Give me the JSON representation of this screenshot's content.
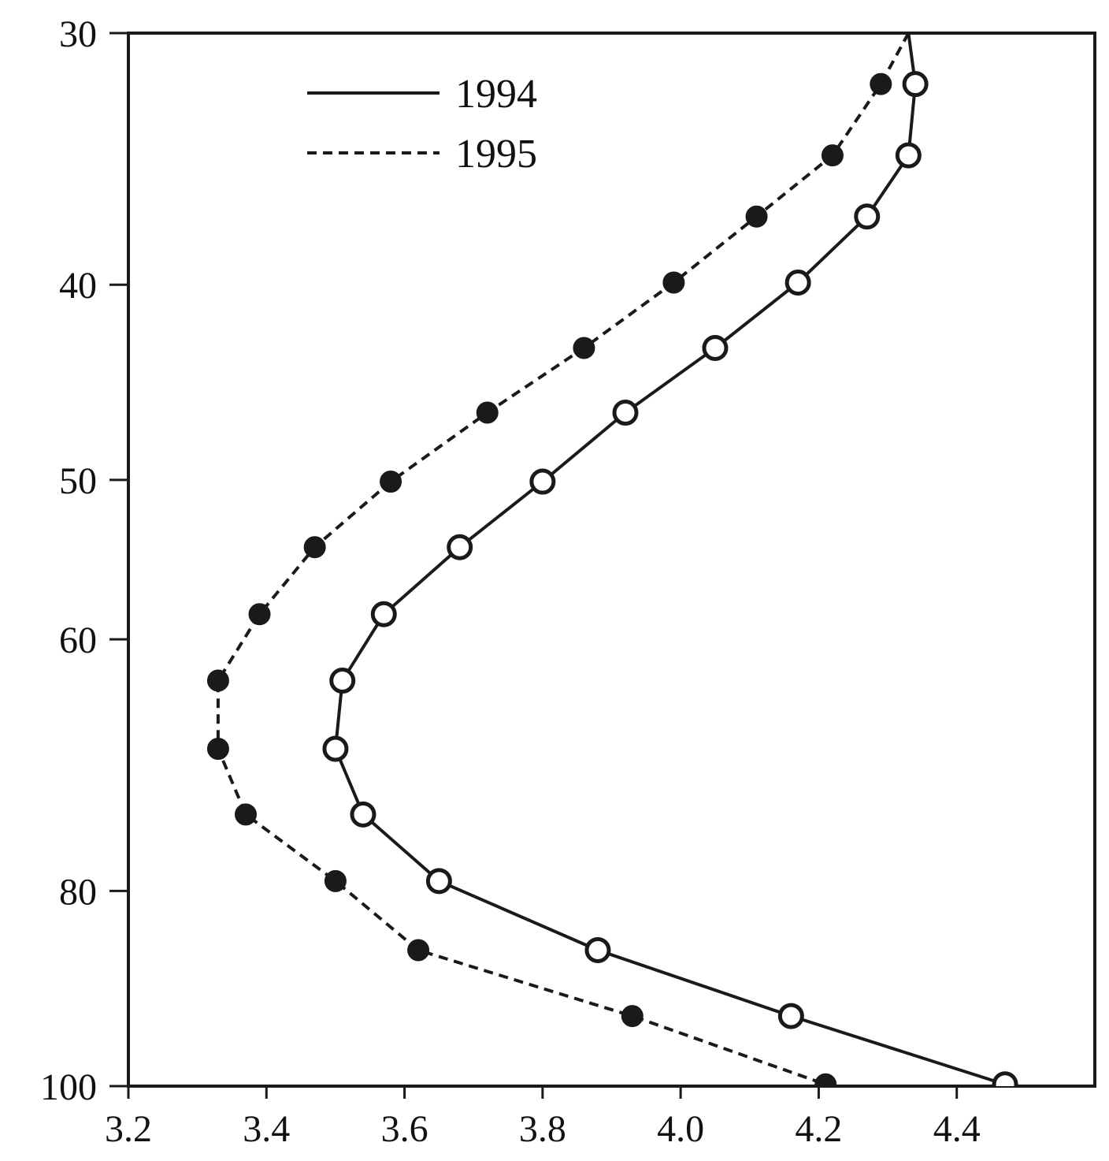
{
  "chart_data": {
    "type": "line",
    "title": "",
    "xlabel": "",
    "ylabel": "",
    "x_ticks": [
      "3.2",
      "3.4",
      "3.6",
      "3.8",
      "4.0",
      "4.2",
      "4.4"
    ],
    "y_ticks": [
      "30",
      "40",
      "50",
      "60",
      "80",
      "100"
    ],
    "y_scale": "log",
    "xlim": [
      3.2,
      4.6
    ],
    "ylim": [
      30,
      100
    ],
    "y_inverted": true,
    "grid": false,
    "legend_position": "top-left",
    "series": [
      {
        "name": "1994",
        "line_style": "solid",
        "marker": "open-circle",
        "color": "#1a1a1a",
        "points": [
          {
            "x": 4.33,
            "y": 30
          },
          {
            "x": 4.34,
            "y": 31.8
          },
          {
            "x": 4.33,
            "y": 34.5
          },
          {
            "x": 4.27,
            "y": 37.0
          },
          {
            "x": 4.17,
            "y": 39.9
          },
          {
            "x": 4.05,
            "y": 43.0
          },
          {
            "x": 3.92,
            "y": 46.3
          },
          {
            "x": 3.8,
            "y": 50.1
          },
          {
            "x": 3.68,
            "y": 54.0
          },
          {
            "x": 3.57,
            "y": 58.3
          },
          {
            "x": 3.51,
            "y": 62.9
          },
          {
            "x": 3.5,
            "y": 68.0
          },
          {
            "x": 3.54,
            "y": 73.3
          },
          {
            "x": 3.65,
            "y": 79.1
          },
          {
            "x": 3.88,
            "y": 85.6
          },
          {
            "x": 4.16,
            "y": 92.3
          },
          {
            "x": 4.47,
            "y": 99.8
          }
        ]
      },
      {
        "name": "1995",
        "line_style": "dashed",
        "marker": "filled-circle",
        "color": "#1a1a1a",
        "points": [
          {
            "x": 4.33,
            "y": 30
          },
          {
            "x": 4.29,
            "y": 31.8
          },
          {
            "x": 4.22,
            "y": 34.5
          },
          {
            "x": 4.11,
            "y": 37.0
          },
          {
            "x": 3.99,
            "y": 39.9
          },
          {
            "x": 3.86,
            "y": 43.0
          },
          {
            "x": 3.72,
            "y": 46.3
          },
          {
            "x": 3.58,
            "y": 50.1
          },
          {
            "x": 3.47,
            "y": 54.0
          },
          {
            "x": 3.39,
            "y": 58.3
          },
          {
            "x": 3.33,
            "y": 62.9
          },
          {
            "x": 3.33,
            "y": 68.0
          },
          {
            "x": 3.37,
            "y": 73.3
          },
          {
            "x": 3.5,
            "y": 79.1
          },
          {
            "x": 3.62,
            "y": 85.6
          },
          {
            "x": 3.93,
            "y": 92.3
          },
          {
            "x": 4.21,
            "y": 99.8
          }
        ]
      }
    ]
  }
}
